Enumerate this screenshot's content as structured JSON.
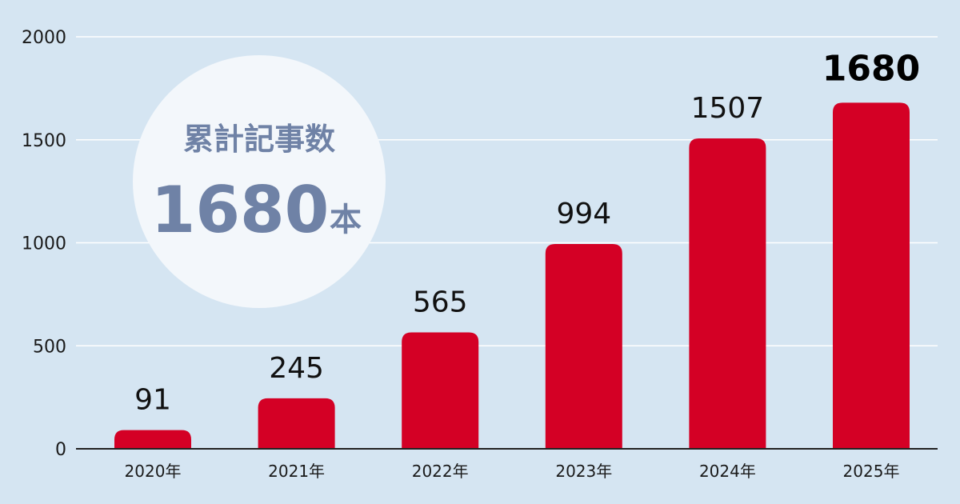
{
  "chart_data": {
    "type": "bar",
    "categories": [
      "2020年",
      "2021年",
      "2022年",
      "2023年",
      "2024年",
      "2025年"
    ],
    "values": [
      91,
      245,
      565,
      994,
      1507,
      1680
    ],
    "value_labels": [
      "91",
      "245",
      "565",
      "994",
      "1507",
      "1680"
    ],
    "highlight_index": 5,
    "ylim": [
      0,
      2000
    ],
    "yticks": [
      0,
      500,
      1000,
      1500,
      2000
    ],
    "ytick_labels": [
      "0",
      "500",
      "1000",
      "1500",
      "2000"
    ],
    "grid": true,
    "xlabel": "",
    "ylabel": "",
    "title": ""
  },
  "badge": {
    "title": "累計記事数",
    "number": "1680",
    "unit": "本"
  },
  "colors": {
    "background": "#d5e5f2",
    "bar": "#d40025",
    "badge_circle": "#f3f7fb",
    "badge_text": "#6f82a6",
    "grid": "#ffffff",
    "axis": "#222222"
  }
}
